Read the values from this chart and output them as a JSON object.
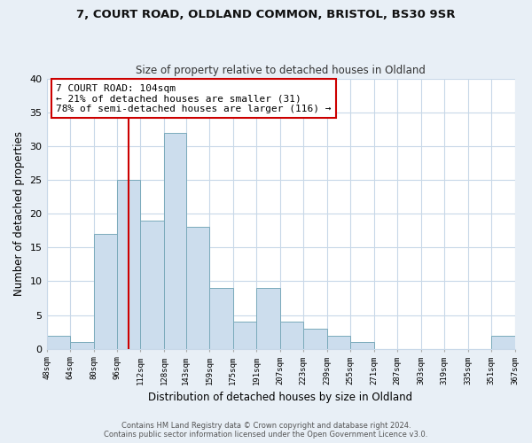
{
  "title1": "7, COURT ROAD, OLDLAND COMMON, BRISTOL, BS30 9SR",
  "title2": "Size of property relative to detached houses in Oldland",
  "xlabel": "Distribution of detached houses by size in Oldland",
  "ylabel": "Number of detached properties",
  "bar_edges": [
    48,
    64,
    80,
    96,
    112,
    128,
    143,
    159,
    175,
    191,
    207,
    223,
    239,
    255,
    271,
    287,
    303,
    319,
    335,
    351,
    367
  ],
  "bar_heights": [
    2,
    1,
    17,
    25,
    19,
    32,
    18,
    9,
    4,
    9,
    4,
    3,
    2,
    1,
    0,
    0,
    0,
    0,
    0,
    2
  ],
  "bar_color": "#ccdded",
  "bar_edgecolor": "#7aaabb",
  "vline_x": 104,
  "vline_color": "#cc0000",
  "annotation_text": "7 COURT ROAD: 104sqm\n← 21% of detached houses are smaller (31)\n78% of semi-detached houses are larger (116) →",
  "annotation_box_facecolor": "#ffffff",
  "annotation_box_edgecolor": "#cc0000",
  "ylim": [
    0,
    40
  ],
  "yticks": [
    0,
    5,
    10,
    15,
    20,
    25,
    30,
    35,
    40
  ],
  "tick_labels": [
    "48sqm",
    "64sqm",
    "80sqm",
    "96sqm",
    "112sqm",
    "128sqm",
    "143sqm",
    "159sqm",
    "175sqm",
    "191sqm",
    "207sqm",
    "223sqm",
    "239sqm",
    "255sqm",
    "271sqm",
    "287sqm",
    "303sqm",
    "319sqm",
    "335sqm",
    "351sqm",
    "367sqm"
  ],
  "footer1": "Contains HM Land Registry data © Crown copyright and database right 2024.",
  "footer2": "Contains public sector information licensed under the Open Government Licence v3.0.",
  "background_color": "#e8eff6",
  "plot_background": "#ffffff",
  "grid_color": "#c8d8e8"
}
